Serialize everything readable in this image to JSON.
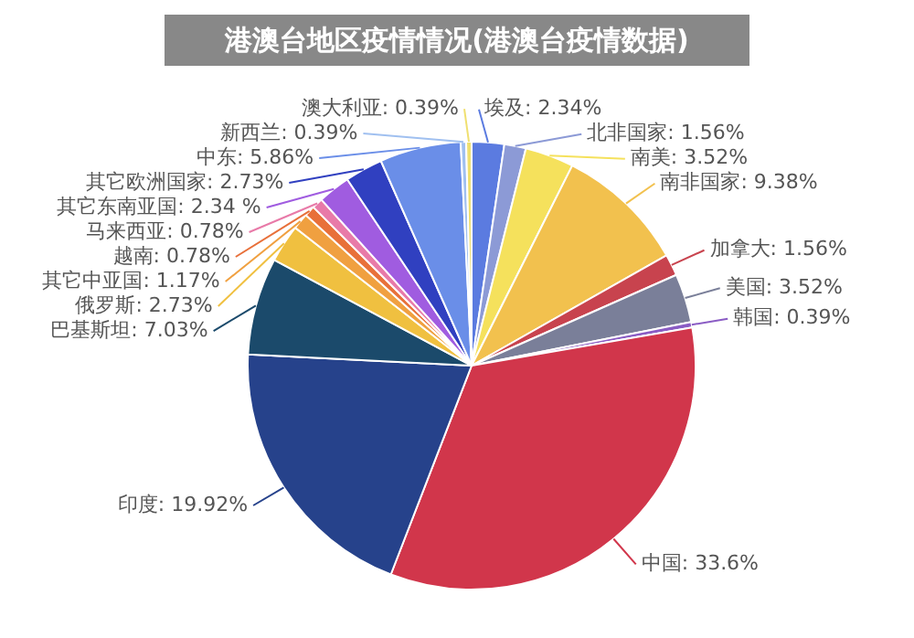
{
  "chart_data": {
    "type": "pie",
    "title": "港澳台地区疫情情况(港澳台疫情数据)",
    "categories": [
      "埃及",
      "北非国家",
      "南美",
      "南非国家",
      "加拿大",
      "美国",
      "韩国",
      "中国",
      "印度",
      "巴基斯坦",
      "俄罗斯",
      "其它中亚国",
      "越南",
      "马来西亚",
      "其它东南亚国",
      "其它欧洲国家",
      "中东",
      "新西兰",
      "澳大利亚"
    ],
    "values": [
      2.34,
      1.56,
      3.52,
      9.38,
      1.56,
      3.52,
      0.39,
      33.6,
      19.92,
      7.03,
      2.73,
      1.17,
      0.78,
      0.78,
      2.34,
      2.73,
      5.86,
      0.39,
      0.39
    ],
    "value_labels": [
      "2.34%",
      "1.56%",
      "3.52%",
      "9.38%",
      "1.56%",
      "3.52%",
      "0.39%",
      "33.6%",
      "19.92%",
      "7.03%",
      "2.73%",
      "1.17%",
      "0.78%",
      "0.78%",
      "2.34 %",
      "2.73%",
      "5.86%",
      "0.39%",
      "0.39%"
    ],
    "colors": [
      "#5b7be0",
      "#8c9ad6",
      "#f5e15c",
      "#f2c14e",
      "#c8434e",
      "#7a7f99",
      "#8a5cc4",
      "#d1364b",
      "#26428b",
      "#1b4a6b",
      "#f0c040",
      "#f0a040",
      "#e8703a",
      "#e87aa8",
      "#a05ce0",
      "#3040c0",
      "#6a8ee8",
      "#a0c0f0",
      "#f0e070"
    ],
    "legend": false
  }
}
